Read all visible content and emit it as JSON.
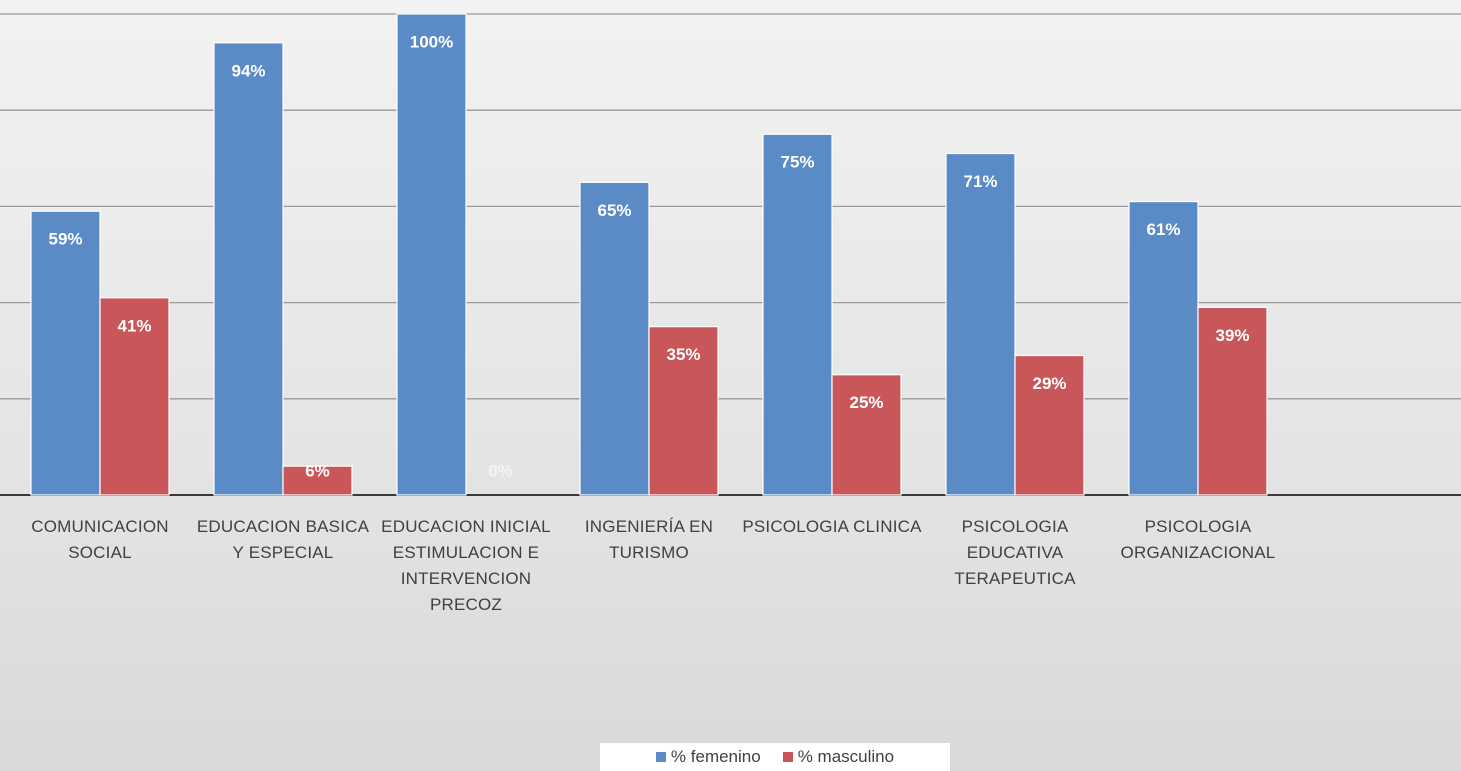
{
  "chart_data": {
    "type": "bar",
    "categories": [
      "COMUNICACION SOCIAL",
      "EDUCACION BASICA Y ESPECIAL",
      "EDUCACION INICIAL ESTIMULACION E INTERVENCION PRECOZ",
      "INGENIERÍA EN TURISMO",
      "PSICOLOGIA CLINICA",
      "PSICOLOGIA EDUCATIVA TERAPEUTICA",
      "PSICOLOGIA ORGANIZACIONAL"
    ],
    "series": [
      {
        "name": "% femenino",
        "color": "#5b8bc7",
        "values": [
          59,
          94,
          100,
          65,
          75,
          71,
          61
        ],
        "value_labels": [
          "59%",
          "94%",
          "100%",
          "65%",
          "75%",
          "71%",
          "61%"
        ]
      },
      {
        "name": "% masculino",
        "color": "#c9575a",
        "values": [
          41,
          6,
          0,
          35,
          25,
          29,
          39
        ],
        "value_labels": [
          "41%",
          "6%",
          "0%",
          "35%",
          "25%",
          "29%",
          "39%"
        ]
      }
    ],
    "ylim": [
      0,
      100
    ],
    "yticks": [
      0,
      20,
      40,
      60,
      80,
      100
    ],
    "grid": true
  }
}
